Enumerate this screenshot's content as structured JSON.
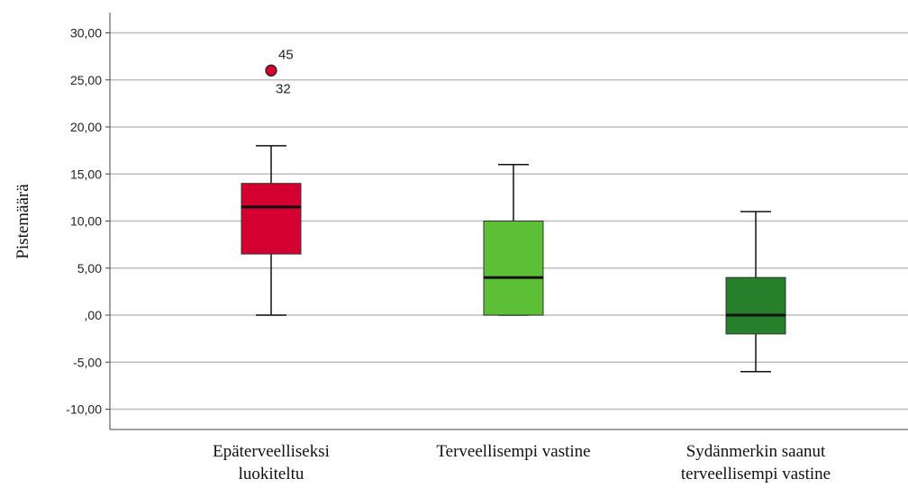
{
  "chart_data": {
    "type": "boxplot",
    "ylabel": "Pistemäärä",
    "xlabel": "",
    "ylim": [
      -12,
      32
    ],
    "yticks": [
      30,
      25,
      20,
      15,
      10,
      5,
      0,
      -5,
      -10
    ],
    "ytick_labels": [
      "30,00",
      "25,00",
      "20,00",
      "15,00",
      "10,00",
      "5,00",
      ",00",
      "-5,00",
      "-10,00"
    ],
    "grid": true,
    "categories": [
      {
        "label_lines": [
          "Epäterveelliseksi",
          "luokiteltu"
        ],
        "color": "#d4002f",
        "whisker_low": 0,
        "q1": 6.5,
        "median": 11.5,
        "q3": 14,
        "whisker_high": 18,
        "outliers": [
          {
            "value": 26,
            "labels": [
              "45",
              "32"
            ]
          }
        ]
      },
      {
        "label_lines": [
          "Terveellisempi vastine"
        ],
        "color": "#5cbf36",
        "whisker_low": 0,
        "q1": 0,
        "median": 4,
        "q3": 10,
        "whisker_high": 16,
        "outliers": []
      },
      {
        "label_lines": [
          "Sydänmerkin saanut",
          "terveellisempi vastine"
        ],
        "color": "#267f2a",
        "whisker_low": -6,
        "q1": -2,
        "median": 0,
        "q3": 4,
        "whisker_high": 11,
        "outliers": []
      }
    ]
  }
}
